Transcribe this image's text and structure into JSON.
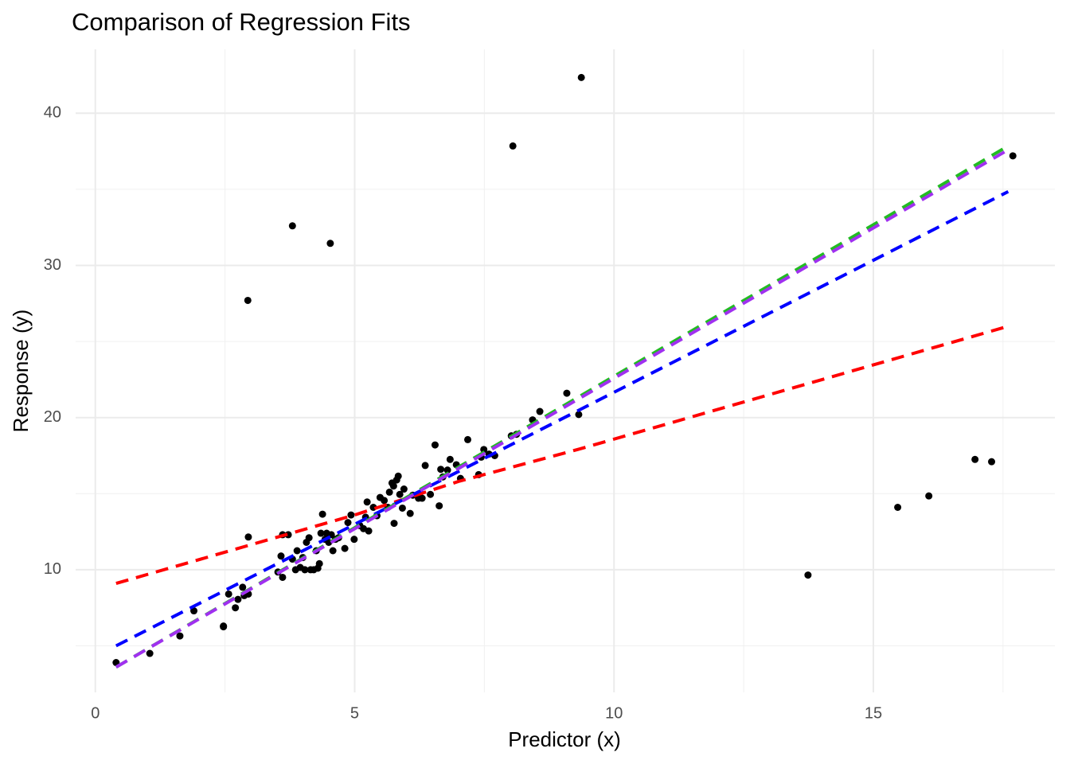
{
  "chart_data": {
    "type": "scatter",
    "title": "Comparison of Regression Fits",
    "x_label": "Predictor (x)",
    "y_label": "Response (y)",
    "color": "#000000",
    "x": [
      0.4,
      1.05,
      1.63,
      1.9,
      2.47,
      2.47,
      2.57,
      2.7,
      2.75,
      2.84,
      2.87,
      2.95,
      2.95,
      2.94,
      3.52,
      3.58,
      3.61,
      3.61,
      3.72,
      3.8,
      3.8,
      3.86,
      3.89,
      3.95,
      4.0,
      4.04,
      4.07,
      4.12,
      4.15,
      4.21,
      4.26,
      4.29,
      4.32,
      4.35,
      4.38,
      4.43,
      4.46,
      4.5,
      4.53,
      4.55,
      4.58,
      4.63,
      4.69,
      4.81,
      4.87,
      4.93,
      4.99,
      5.1,
      5.17,
      5.21,
      5.24,
      5.27,
      5.36,
      5.43,
      5.49,
      5.57,
      5.64,
      5.67,
      5.72,
      5.75,
      5.76,
      5.81,
      5.84,
      5.87,
      5.92,
      5.95,
      6.07,
      6.12,
      6.23,
      6.3,
      6.36,
      6.46,
      6.55,
      6.63,
      6.66,
      6.7,
      6.79,
      6.84,
      6.96,
      7.04,
      7.18,
      7.39,
      7.44,
      7.49,
      7.59,
      7.7,
      8.02,
      8.05,
      8.12,
      8.43,
      8.57,
      9.09,
      9.32,
      9.37,
      13.74,
      15.47,
      16.07,
      16.96,
      17.28,
      17.69
    ],
    "values": [
      3.9,
      4.5,
      5.65,
      7.3,
      6.3,
      6.25,
      8.4,
      7.5,
      8.05,
      8.85,
      8.3,
      8.4,
      12.15,
      27.7,
      9.85,
      10.9,
      9.5,
      12.3,
      12.3,
      32.6,
      10.7,
      10.0,
      11.25,
      10.15,
      10.8,
      10.0,
      11.8,
      12.1,
      10.0,
      10.0,
      11.25,
      10.1,
      10.4,
      12.4,
      13.65,
      12.0,
      12.4,
      11.8,
      31.45,
      12.3,
      11.25,
      12.0,
      12.1,
      11.4,
      13.1,
      13.6,
      12.0,
      12.9,
      12.7,
      13.45,
      14.45,
      12.55,
      14.1,
      13.55,
      14.75,
      14.55,
      14.1,
      15.1,
      15.7,
      15.5,
      13.05,
      15.9,
      16.15,
      14.95,
      14.05,
      15.3,
      13.7,
      14.9,
      14.7,
      14.7,
      16.85,
      14.95,
      18.2,
      14.2,
      16.6,
      16.1,
      16.55,
      17.25,
      16.9,
      16.0,
      18.55,
      16.25,
      17.4,
      17.9,
      17.6,
      17.5,
      18.8,
      37.85,
      18.9,
      19.85,
      20.4,
      21.6,
      20.2,
      42.35,
      9.65,
      14.1,
      14.85,
      17.25,
      17.1,
      37.2
    ],
    "lines": [
      {
        "color": "#ff0000",
        "x": [
          0.4,
          5,
          7,
          9.3,
          17.6
        ],
        "values": [
          9.1,
          13.6,
          15.8,
          17.9,
          26.0
        ]
      },
      {
        "color": "#0000ff",
        "x": [
          0.4,
          17.6
        ],
        "values": [
          5.0,
          34.85
        ]
      },
      {
        "color": "#22bb22",
        "x": [
          0.4,
          17.6
        ],
        "values": [
          3.6,
          37.85
        ]
      },
      {
        "color": "#a030f0",
        "x": [
          0.4,
          17.6
        ],
        "values": [
          3.6,
          37.6
        ]
      }
    ],
    "xlim": [
      -0.38,
      18.5
    ],
    "ylim": [
      1.94,
      44.2
    ],
    "xticks": [
      0,
      5,
      10,
      15
    ],
    "yticks": [
      10,
      20,
      30,
      40
    ],
    "x_minor_grid": [
      2.5,
      7.5,
      12.5,
      17.5
    ],
    "y_minor_grid": [
      5,
      15,
      25,
      35
    ],
    "grid": true
  }
}
